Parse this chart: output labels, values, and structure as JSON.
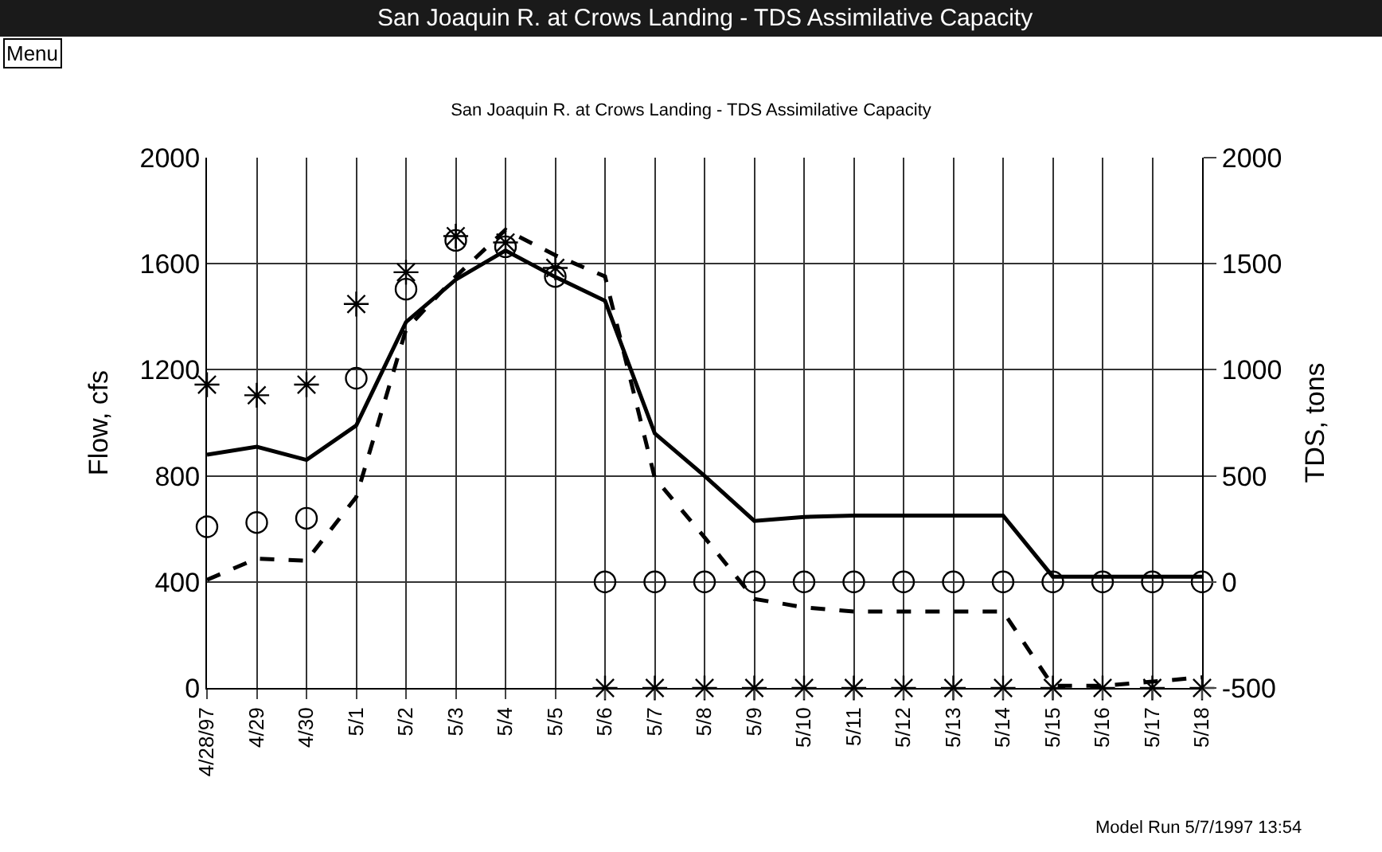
{
  "chart_data": {
    "type": "line",
    "title": "San Joaquin R. at Crows Landing - TDS Assimilative Capacity",
    "ylabel": "Flow, cfs",
    "y2label": "TDS, tons",
    "annotations": [
      "San Joaquin R. at Crows Landing - TDS Assimilative Capacity",
      "Menu",
      "Model Run 5/7/1997 13:54"
    ],
    "categories": [
      "4/28/97",
      "4/29",
      "4/30",
      "5/1",
      "5/2",
      "5/3",
      "5/4",
      "5/5",
      "5/6",
      "5/7",
      "5/8",
      "5/9",
      "5/10",
      "5/11",
      "5/12",
      "5/13",
      "5/14",
      "5/15",
      "5/16",
      "5/17",
      "5/18"
    ],
    "series": [
      {
        "color": "#000000",
        "line_style": "solid",
        "marker": "none",
        "values": [
          880,
          910,
          860,
          990,
          1380,
          1540,
          1650,
          1550,
          1460,
          960,
          800,
          630,
          645,
          650,
          650,
          650,
          650,
          420,
          420,
          420,
          420
        ]
      },
      {
        "type": "line",
        "axis": "y2",
        "color": "#000000",
        "line_style": "dashed",
        "marker": "none",
        "values": [
          10,
          110,
          100,
          400,
          1190,
          1440,
          1660,
          1540,
          1440,
          490,
          210,
          -80,
          -120,
          -140,
          -140,
          -140,
          -140,
          -490,
          -490,
          -470,
          -450
        ]
      },
      {
        "type": "scatter",
        "axis": "y2",
        "color": "#000000",
        "marker": "circle",
        "values": [
          260,
          280,
          300,
          960,
          1380,
          1610,
          1580,
          1440,
          0,
          0,
          0,
          0,
          0,
          0,
          0,
          0,
          0,
          0,
          0,
          0,
          0
        ]
      },
      {
        "type": "scatter",
        "axis": "y2",
        "color": "#000000",
        "marker": "cross",
        "values": [
          930,
          880,
          930,
          1310,
          1460,
          1630,
          1600,
          1480,
          -500,
          -500,
          -500,
          -500,
          -500,
          -500,
          -500,
          -500,
          -500,
          -500,
          -500,
          -500,
          -500
        ]
      }
    ],
    "ylim": [
      0,
      2000
    ],
    "yticks": [
      0,
      400,
      800,
      1200,
      1600,
      2000
    ],
    "y2lim": [
      -500,
      2000
    ],
    "y2ticks": [
      -500,
      0,
      500,
      1000,
      1500,
      2000
    ],
    "grid": true
  }
}
